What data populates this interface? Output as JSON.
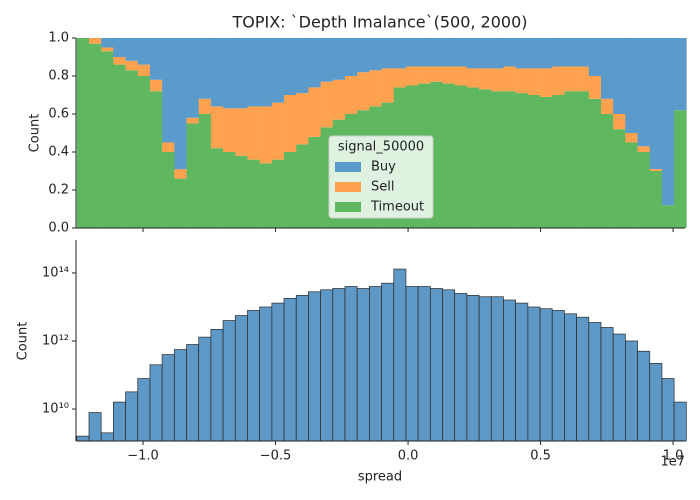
{
  "chart_data": [
    {
      "type": "stacked_histogram",
      "title": "TOPIX: `Depth Imalance`(500, 2000)",
      "ylabel": "Count",
      "bins": [
        -12500000,
        -12040000,
        -11580000,
        -11120000,
        -10660000,
        -10200000,
        -9740000,
        -9280000,
        -8820000,
        -8360000,
        -7900000,
        -7440000,
        -6980000,
        -6520000,
        -6060000,
        -5600000,
        -5140000,
        -4680000,
        -4220000,
        -3760000,
        -3300000,
        -2840000,
        -2380000,
        -1920000,
        -1460000,
        -1000000,
        -540000,
        -80000,
        380000,
        840000,
        1300000,
        1760000,
        2220000,
        2680000,
        3140000,
        3600000,
        4060000,
        4520000,
        4980000,
        5440000,
        5900000,
        6360000,
        6820000,
        7280000,
        7740000,
        8200000,
        8660000,
        9120000,
        9580000,
        10040000,
        10500000
      ],
      "legend_title": "signal_50000",
      "legend_loc": "lower center",
      "series": [
        {
          "name": "Buy",
          "color": "#5b9bcb",
          "values": [
            0,
            0,
            0.05,
            0.1,
            0.12,
            0.14,
            0.22,
            0.55,
            0.69,
            0.42,
            0.32,
            0.36,
            0.37,
            0.37,
            0.36,
            0.36,
            0.34,
            0.3,
            0.29,
            0.26,
            0.23,
            0.22,
            0.2,
            0.18,
            0.17,
            0.16,
            0.16,
            0.15,
            0.15,
            0.15,
            0.15,
            0.15,
            0.16,
            0.16,
            0.16,
            0.15,
            0.16,
            0.16,
            0.16,
            0.15,
            0.15,
            0.15,
            0.2,
            0.32,
            0.4,
            0.5,
            0.57,
            0.69,
            0.88,
            0.38
          ]
        },
        {
          "name": "Sell",
          "color": "#ffa24f",
          "values": [
            0,
            0.03,
            0.02,
            0.04,
            0.05,
            0.06,
            0.06,
            0.05,
            0.05,
            0.03,
            0.08,
            0.22,
            0.23,
            0.25,
            0.28,
            0.3,
            0.3,
            0.3,
            0.27,
            0.26,
            0.24,
            0.21,
            0.2,
            0.2,
            0.19,
            0.18,
            0.1,
            0.1,
            0.09,
            0.08,
            0.09,
            0.1,
            0.1,
            0.11,
            0.12,
            0.13,
            0.13,
            0.14,
            0.15,
            0.15,
            0.13,
            0.13,
            0.12,
            0.08,
            0.08,
            0.05,
            0.03,
            0.01,
            0,
            0
          ]
        },
        {
          "name": "Timeout",
          "color": "#5fb760",
          "values": [
            1,
            0.97,
            0.93,
            0.86,
            0.83,
            0.8,
            0.72,
            0.4,
            0.26,
            0.55,
            0.6,
            0.42,
            0.4,
            0.38,
            0.36,
            0.34,
            0.36,
            0.4,
            0.44,
            0.48,
            0.53,
            0.57,
            0.6,
            0.62,
            0.64,
            0.66,
            0.74,
            0.75,
            0.76,
            0.77,
            0.76,
            0.75,
            0.74,
            0.73,
            0.72,
            0.72,
            0.71,
            0.7,
            0.69,
            0.7,
            0.72,
            0.72,
            0.68,
            0.6,
            0.52,
            0.45,
            0.4,
            0.3,
            0.12,
            0.62
          ]
        }
      ],
      "xlim": [
        -12530000,
        10450000
      ],
      "ylim": [
        0,
        1
      ],
      "yticks": [
        {
          "value": 0,
          "label": "0.0"
        },
        0.2,
        0.4,
        0.6,
        0.8,
        {
          "value": 1,
          "label": "1.0"
        }
      ]
    },
    {
      "type": "histogram",
      "xlabel": "spread",
      "ylabel": "Count",
      "x_offset_label": "1e7",
      "log_y": true,
      "color": "#4c8dc0",
      "bins": [
        -12500000,
        -12040000,
        -11580000,
        -11120000,
        -10660000,
        -10200000,
        -9740000,
        -9280000,
        -8820000,
        -8360000,
        -7900000,
        -7440000,
        -6980000,
        -6520000,
        -6060000,
        -5600000,
        -5140000,
        -4680000,
        -4220000,
        -3760000,
        -3300000,
        -2840000,
        -2380000,
        -1920000,
        -1460000,
        -1000000,
        -540000,
        -80000,
        380000,
        840000,
        1300000,
        1760000,
        2220000,
        2680000,
        3140000,
        3600000,
        4060000,
        4520000,
        4980000,
        5440000,
        5900000,
        6360000,
        6820000,
        7280000,
        7740000,
        8200000,
        8660000,
        9120000,
        9580000,
        10040000,
        10500000
      ],
      "values": [
        1600000000.0,
        7900000000.0,
        2000000000.0,
        16000000000.0,
        32000000000.0,
        79000000000.0,
        200000000000.0,
        400000000000.0,
        560000000000.0,
        790000000000.0,
        1300000000000.0,
        2200000000000.0,
        4000000000000.0,
        5600000000000.0,
        7900000000000.0,
        10000000000000.0,
        13000000000000.0,
        18000000000000.0,
        22000000000000.0,
        28000000000000.0,
        32000000000000.0,
        35000000000000.0,
        40000000000000.0,
        35000000000000.0,
        40000000000000.0,
        50000000000000.0,
        130000000000000.0,
        40000000000000.0,
        40000000000000.0,
        35000000000000.0,
        32000000000000.0,
        25000000000000.0,
        22000000000000.0,
        20000000000000.0,
        20000000000000.0,
        16000000000000.0,
        13000000000000.0,
        10000000000000.0,
        8900000000000.0,
        7900000000000.0,
        6300000000000.0,
        5000000000000.0,
        3500000000000.0,
        2500000000000.0,
        1600000000000.0,
        1000000000000.0,
        500000000000.0,
        220000000000.0,
        79000000000.0,
        16000000000.0
      ],
      "xlim": [
        -12530000,
        10450000
      ],
      "xticks": [
        {
          "value": -10000000,
          "label": "−1.0"
        },
        {
          "value": -5000000,
          "label": "−0.5"
        },
        {
          "value": 0,
          "label": "0.0"
        },
        {
          "value": 5000000,
          "label": "0.5"
        },
        {
          "value": 10000000,
          "label": "1.0"
        }
      ],
      "ylim": [
        1150000000.0,
        930000000000000.0
      ],
      "yticks": [
        {
          "value": 10000000000.0,
          "label": "10¹⁰"
        },
        {
          "value": 1000000000000.0,
          "label": "10¹²"
        },
        {
          "value": 100000000000000.0,
          "label": "10¹⁴"
        }
      ]
    }
  ]
}
